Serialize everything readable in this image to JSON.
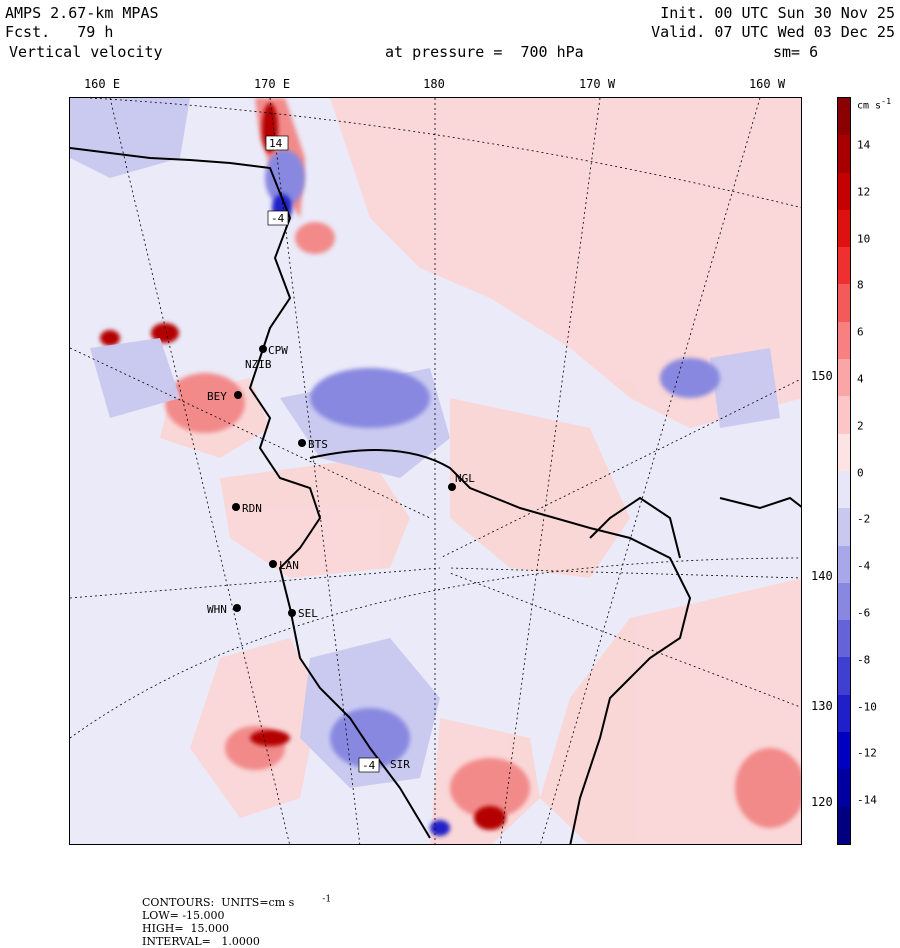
{
  "header": {
    "model": "AMPS 2.67-km MPAS",
    "fcst": "Fcst.   79 h",
    "field": "Vertical velocity",
    "init": "Init. 00 UTC Sun 30 Nov 25",
    "valid": "Valid. 07 UTC Wed 03 Dec 25",
    "level": "at pressure =  700 hPa",
    "smooth": "sm= 6"
  },
  "lon_labels": [
    "160 E",
    "170 E",
    "180",
    "170 W",
    "160 W"
  ],
  "lat_labels": [
    "150 W",
    "140 W",
    "130 W",
    "120 W"
  ],
  "colorbar": {
    "units": "cm s",
    "units_exp": "-1",
    "tick_labels": [
      "14",
      "12",
      "10",
      "8",
      "6",
      "4",
      "2",
      "0",
      "-2",
      "-4",
      "-6",
      "-8",
      "-10",
      "-12",
      "-14"
    ],
    "colors": [
      "#8b0000",
      "#a80000",
      "#c40000",
      "#de1010",
      "#f03030",
      "#f55a5a",
      "#f88080",
      "#faa6a6",
      "#fcc6c6",
      "#fde3e3",
      "#e6e6f8",
      "#c8c8f0",
      "#a8a8e8",
      "#8888e0",
      "#6464d8",
      "#4040d0",
      "#2020c8",
      "#0000c0",
      "#0000a0",
      "#000080"
    ]
  },
  "stations": [
    {
      "code": "CPW"
    },
    {
      "code": "NZIB"
    },
    {
      "code": "BEY"
    },
    {
      "code": "BTS"
    },
    {
      "code": "NGL"
    },
    {
      "code": "RDN"
    },
    {
      "code": "LAN"
    },
    {
      "code": "WHN"
    },
    {
      "code": "SEL"
    },
    {
      "code": "SIR"
    }
  ],
  "contour_labels": [
    "14",
    "-4",
    "-4"
  ],
  "footer": {
    "contours": "CONTOURS:  UNITS=cm s",
    "units_exp": "-1",
    "low": "LOW= -15.000",
    "high": "HIGH=  15.000",
    "interval": "INTERVAL=   1.0000"
  },
  "colors": {
    "background_field": "#ebeaf8",
    "positive_light": "#fbd6d6",
    "positive_mid": "#f28a8a",
    "positive_strong": "#b40000",
    "negative_light": "#c8c8f0",
    "negative_mid": "#8888e0",
    "negative_strong": "#2020c8"
  }
}
